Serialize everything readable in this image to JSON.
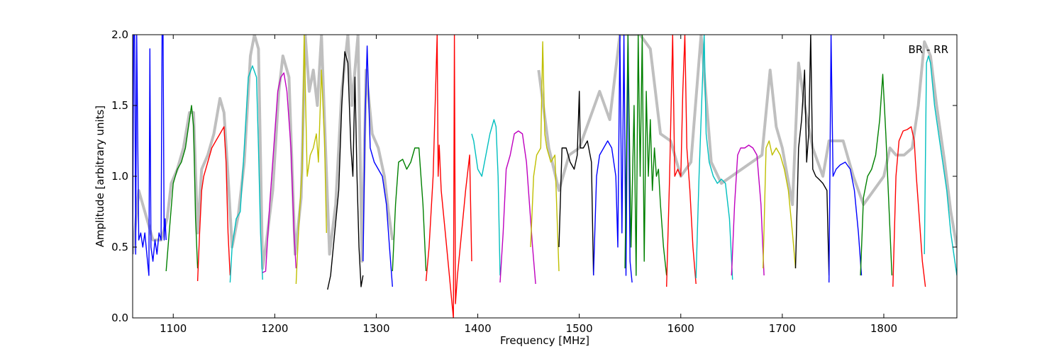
{
  "chart_data": {
    "type": "line",
    "title": "",
    "xlabel": "Frequency [MHz]",
    "ylabel": "Amplitude [arbitrary units]",
    "xlim": [
      1060,
      1872
    ],
    "ylim": [
      0.0,
      2.0
    ],
    "x_ticks": [
      1100,
      1200,
      1300,
      1400,
      1500,
      1600,
      1700,
      1800
    ],
    "x_tick_labels": [
      "1100",
      "1200",
      "1300",
      "1400",
      "1500",
      "1600",
      "1700",
      "1800"
    ],
    "y_ticks": [
      0.0,
      0.5,
      1.0,
      1.5,
      2.0
    ],
    "y_tick_labels": [
      "0.0",
      "0.5",
      "1.0",
      "1.5",
      "2.0"
    ],
    "grid": false,
    "annotation": "BR - RR",
    "annotation_position": "top-right",
    "background_series": {
      "color": "#bfbfbf",
      "points": [
        [
          1060,
          0.45
        ],
        [
          1066,
          0.9
        ],
        [
          1072,
          0.75
        ],
        [
          1080,
          0.55
        ],
        [
          1088,
          0.55
        ],
        [
          1094,
          0.7
        ],
        [
          1098,
          0.95
        ],
        [
          1104,
          1.05
        ],
        [
          1110,
          1.2
        ],
        [
          1116,
          1.45
        ],
        [
          1120,
          1.45
        ],
        [
          1124,
          0.6
        ],
        [
          1128,
          1.05
        ],
        [
          1134,
          1.15
        ],
        [
          1140,
          1.3
        ],
        [
          1146,
          1.55
        ],
        [
          1150,
          1.45
        ],
        [
          1154,
          1.0
        ],
        [
          1158,
          0.5
        ],
        [
          1164,
          0.72
        ],
        [
          1170,
          1.1
        ],
        [
          1176,
          1.85
        ],
        [
          1180,
          2.0
        ],
        [
          1184,
          1.9
        ],
        [
          1188,
          0.35
        ],
        [
          1192,
          0.55
        ],
        [
          1198,
          0.9
        ],
        [
          1204,
          1.6
        ],
        [
          1208,
          1.85
        ],
        [
          1214,
          1.7
        ],
        [
          1220,
          0.45
        ],
        [
          1226,
          0.85
        ],
        [
          1230,
          2.0
        ],
        [
          1234,
          1.6
        ],
        [
          1238,
          1.75
        ],
        [
          1242,
          1.5
        ],
        [
          1246,
          2.0
        ],
        [
          1250,
          1.2
        ],
        [
          1254,
          0.45
        ],
        [
          1260,
          0.8
        ],
        [
          1266,
          1.6
        ],
        [
          1272,
          2.0
        ],
        [
          1276,
          1.5
        ],
        [
          1282,
          2.0
        ],
        [
          1286,
          0.4
        ],
        [
          1290,
          1.75
        ],
        [
          1296,
          1.3
        ],
        [
          1302,
          1.2
        ],
        [
          1308,
          1.0
        ],
        [
          1312,
          0.75
        ],
        [
          1316,
          0.55
        ]
      ],
      "points_right": [
        [
          1460,
          1.75
        ],
        [
          1470,
          1.2
        ],
        [
          1480,
          0.9
        ],
        [
          1490,
          1.15
        ],
        [
          1500,
          1.2
        ],
        [
          1510,
          1.4
        ],
        [
          1520,
          1.6
        ],
        [
          1530,
          1.4
        ],
        [
          1540,
          2.0
        ],
        [
          1550,
          2.0
        ],
        [
          1560,
          2.0
        ],
        [
          1570,
          1.9
        ],
        [
          1580,
          1.3
        ],
        [
          1590,
          1.25
        ],
        [
          1600,
          1.0
        ],
        [
          1610,
          1.1
        ],
        [
          1620,
          2.0
        ],
        [
          1630,
          1.1
        ],
        [
          1640,
          0.95
        ],
        [
          1650,
          1.0
        ],
        [
          1660,
          1.05
        ],
        [
          1680,
          1.15
        ],
        [
          1688,
          1.75
        ],
        [
          1694,
          1.35
        ],
        [
          1700,
          1.2
        ],
        [
          1710,
          0.8
        ],
        [
          1716,
          1.8
        ],
        [
          1722,
          1.5
        ],
        [
          1730,
          1.2
        ],
        [
          1740,
          1.0
        ],
        [
          1746,
          1.25
        ],
        [
          1752,
          1.25
        ],
        [
          1760,
          1.25
        ],
        [
          1770,
          1.0
        ],
        [
          1780,
          0.8
        ],
        [
          1800,
          1.0
        ],
        [
          1806,
          1.2
        ],
        [
          1812,
          1.15
        ],
        [
          1820,
          1.15
        ],
        [
          1828,
          1.2
        ],
        [
          1834,
          1.5
        ],
        [
          1840,
          1.95
        ],
        [
          1846,
          1.85
        ],
        [
          1852,
          1.5
        ],
        [
          1860,
          1.1
        ],
        [
          1866,
          0.75
        ],
        [
          1872,
          0.5
        ]
      ]
    },
    "series": [
      {
        "color": "#0000ff",
        "x": [
          1060,
          1061,
          1062,
          1063,
          1064,
          1066,
          1068,
          1070,
          1072,
          1074,
          1076,
          1077,
          1078,
          1080,
          1082,
          1084,
          1086,
          1088,
          1089,
          1090,
          1091,
          1092,
          1093
        ],
        "y": [
          0.45,
          2.0,
          2.0,
          0.45,
          2.0,
          0.55,
          0.6,
          0.5,
          0.6,
          0.45,
          0.3,
          1.9,
          0.5,
          0.4,
          0.55,
          0.45,
          0.6,
          0.55,
          2.0,
          2.0,
          0.55,
          0.7,
          0.55
        ]
      },
      {
        "color": "#008000",
        "x": [
          1093,
          1096,
          1100,
          1104,
          1108,
          1112,
          1116,
          1118,
          1120,
          1122,
          1124
        ],
        "y": [
          0.33,
          0.6,
          0.95,
          1.05,
          1.1,
          1.2,
          1.4,
          1.5,
          1.35,
          0.7,
          0.35
        ]
      },
      {
        "color": "#ff0000",
        "x": [
          1124,
          1126,
          1128,
          1130,
          1134,
          1138,
          1142,
          1146,
          1150,
          1152,
          1154,
          1156
        ],
        "y": [
          0.26,
          0.6,
          0.9,
          1.0,
          1.1,
          1.2,
          1.25,
          1.3,
          1.35,
          1.1,
          0.6,
          0.3
        ]
      },
      {
        "color": "#00bfbf",
        "x": [
          1156,
          1158,
          1162,
          1166,
          1170,
          1174,
          1178,
          1182,
          1184,
          1186,
          1188
        ],
        "y": [
          0.25,
          0.5,
          0.7,
          0.75,
          1.2,
          1.7,
          1.78,
          1.7,
          1.2,
          0.6,
          0.27
        ]
      },
      {
        "color": "#bf00bf",
        "x": [
          1188,
          1191,
          1195,
          1199,
          1203,
          1206,
          1209,
          1212,
          1216,
          1219,
          1221
        ],
        "y": [
          0.32,
          0.33,
          0.8,
          1.2,
          1.6,
          1.7,
          1.73,
          1.6,
          1.2,
          0.6,
          0.35
        ]
      },
      {
        "color": "#bfbf00",
        "x": [
          1221,
          1224,
          1227,
          1229,
          1232,
          1235,
          1238,
          1241,
          1243,
          1246,
          1249,
          1251
        ],
        "y": [
          0.24,
          0.7,
          1.05,
          2.0,
          1.0,
          1.15,
          1.2,
          1.3,
          1.1,
          1.75,
          1.25,
          0.6
        ]
      },
      {
        "color": "#000000",
        "x": [
          1252,
          1255,
          1259,
          1263,
          1266,
          1269,
          1272,
          1275,
          1277,
          1279,
          1281,
          1283,
          1285,
          1287
        ],
        "y": [
          0.2,
          0.3,
          0.6,
          0.9,
          1.5,
          1.88,
          1.8,
          1.2,
          1.0,
          1.7,
          1.0,
          0.5,
          0.22,
          0.3
        ]
      },
      {
        "color": "#0000ff",
        "x": [
          1287,
          1289,
          1291,
          1294,
          1298,
          1302,
          1306,
          1310,
          1313,
          1316
        ],
        "y": [
          0.4,
          1.4,
          1.92,
          1.2,
          1.1,
          1.05,
          1.0,
          0.8,
          0.5,
          0.22
        ]
      },
      {
        "color": "#008000",
        "x": [
          1316,
          1319,
          1322,
          1326,
          1330,
          1334,
          1338,
          1342,
          1346,
          1349
        ],
        "y": [
          0.33,
          0.8,
          1.1,
          1.12,
          1.05,
          1.1,
          1.2,
          1.2,
          0.8,
          0.33
        ]
      },
      {
        "color": "#ff0000",
        "x": [
          1349,
          1352,
          1356,
          1360,
          1361,
          1362,
          1364,
          1368,
          1372,
          1374,
          1376,
          1377,
          1378,
          1380,
          1384,
          1388,
          1392,
          1394
        ],
        "y": [
          0.26,
          0.5,
          1.0,
          2.0,
          1.0,
          1.22,
          0.9,
          0.6,
          0.3,
          0.15,
          0.0,
          2.0,
          0.1,
          0.3,
          0.6,
          0.9,
          1.15,
          0.4
        ]
      },
      {
        "color": "#00bfbf",
        "x": [
          1394,
          1396,
          1400,
          1404,
          1408,
          1412,
          1416,
          1418,
          1420,
          1422
        ],
        "y": [
          1.3,
          1.25,
          1.05,
          1.0,
          1.15,
          1.3,
          1.4,
          1.35,
          1.0,
          0.3
        ]
      },
      {
        "color": "#bf00bf",
        "x": [
          1422,
          1425,
          1428,
          1432,
          1436,
          1440,
          1444,
          1448,
          1451,
          1454,
          1457
        ],
        "y": [
          0.25,
          0.6,
          1.05,
          1.15,
          1.3,
          1.32,
          1.3,
          1.1,
          0.8,
          0.5,
          0.24
        ]
      },
      {
        "color": "#bfbf00",
        "x": [
          1452,
          1455,
          1458,
          1462,
          1464,
          1466,
          1468,
          1472,
          1476,
          1480
        ],
        "y": [
          0.5,
          1.0,
          1.15,
          1.2,
          1.95,
          1.3,
          1.2,
          1.1,
          1.15,
          0.33
        ]
      },
      {
        "color": "#000000",
        "x": [
          1480,
          1483,
          1487,
          1491,
          1495,
          1498,
          1500,
          1501,
          1504,
          1508,
          1512,
          1514
        ],
        "y": [
          0.5,
          1.2,
          1.2,
          1.1,
          1.05,
          1.15,
          1.6,
          1.2,
          1.2,
          1.25,
          1.1,
          0.3
        ]
      },
      {
        "color": "#0000ff",
        "x": [
          1514,
          1517,
          1520,
          1524,
          1528,
          1532,
          1536,
          1538,
          1540,
          1542,
          1544,
          1546,
          1548,
          1550,
          1552
        ],
        "y": [
          0.3,
          1.0,
          1.15,
          1.2,
          1.25,
          1.2,
          1.0,
          0.5,
          2.0,
          0.6,
          2.0,
          0.3,
          2.0,
          0.4,
          0.25
        ]
      },
      {
        "color": "#008000",
        "x": [
          1545,
          1548,
          1551,
          1554,
          1556,
          1558,
          1560,
          1562,
          1564,
          1566,
          1568,
          1570,
          1572,
          1574,
          1576,
          1578,
          1580,
          1583,
          1586
        ],
        "y": [
          0.35,
          2.0,
          0.5,
          1.5,
          0.3,
          2.0,
          1.0,
          2.0,
          0.4,
          1.6,
          1.0,
          1.4,
          0.9,
          1.2,
          1.0,
          1.05,
          0.8,
          0.5,
          0.3
        ]
      },
      {
        "color": "#ff0000",
        "x": [
          1586,
          1589,
          1592,
          1594,
          1597,
          1600,
          1602,
          1604,
          1606,
          1609,
          1612,
          1615
        ],
        "y": [
          0.22,
          1.0,
          2.0,
          1.0,
          1.05,
          1.0,
          1.6,
          2.0,
          1.2,
          0.9,
          0.5,
          0.24
        ]
      },
      {
        "color": "#00bfbf",
        "x": [
          1615,
          1618,
          1621,
          1623,
          1625,
          1628,
          1632,
          1636,
          1640,
          1644,
          1648,
          1651
        ],
        "y": [
          0.28,
          1.0,
          1.6,
          2.0,
          1.3,
          1.1,
          1.0,
          0.95,
          0.98,
          0.95,
          0.7,
          0.27
        ]
      },
      {
        "color": "#bf00bf",
        "x": [
          1650,
          1653,
          1656,
          1659,
          1663,
          1667,
          1671,
          1675,
          1679,
          1682
        ],
        "y": [
          0.3,
          0.8,
          1.15,
          1.2,
          1.2,
          1.22,
          1.2,
          1.15,
          0.8,
          0.3
        ]
      },
      {
        "color": "#bfbf00",
        "x": [
          1681,
          1684,
          1687,
          1690,
          1694,
          1698,
          1702,
          1706,
          1710,
          1713
        ],
        "y": [
          0.35,
          1.2,
          1.25,
          1.15,
          1.2,
          1.15,
          1.05,
          0.9,
          0.6,
          0.35
        ]
      },
      {
        "color": "#000000",
        "x": [
          1713,
          1716,
          1719,
          1722,
          1724,
          1726,
          1728,
          1730,
          1733,
          1736,
          1740,
          1744,
          1746
        ],
        "y": [
          0.35,
          1.2,
          1.4,
          1.75,
          1.1,
          1.3,
          2.0,
          1.05,
          1.0,
          0.98,
          0.95,
          0.9,
          0.3
        ]
      },
      {
        "color": "#0000ff",
        "x": [
          1746,
          1748,
          1750,
          1753,
          1757,
          1762,
          1767,
          1771,
          1775,
          1778
        ],
        "y": [
          0.25,
          2.0,
          1.0,
          1.05,
          1.08,
          1.1,
          1.05,
          0.9,
          0.6,
          0.3
        ]
      },
      {
        "color": "#008000",
        "x": [
          1777,
          1780,
          1784,
          1788,
          1792,
          1796,
          1799,
          1802,
          1805,
          1808
        ],
        "y": [
          0.3,
          0.85,
          1.0,
          1.05,
          1.15,
          1.4,
          1.72,
          1.3,
          0.8,
          0.3
        ]
      },
      {
        "color": "#ff0000",
        "x": [
          1809,
          1812,
          1815,
          1819,
          1823,
          1827,
          1830,
          1832,
          1835,
          1838,
          1841
        ],
        "y": [
          0.22,
          1.0,
          1.25,
          1.32,
          1.33,
          1.35,
          1.25,
          1.0,
          0.7,
          0.4,
          0.22
        ]
      },
      {
        "color": "#00bfbf",
        "x": [
          1840,
          1842,
          1844,
          1846,
          1850,
          1854,
          1858,
          1862,
          1866,
          1870,
          1872
        ],
        "y": [
          0.45,
          1.8,
          1.85,
          1.8,
          1.5,
          1.3,
          1.1,
          0.9,
          0.6,
          0.4,
          0.3
        ]
      }
    ]
  }
}
